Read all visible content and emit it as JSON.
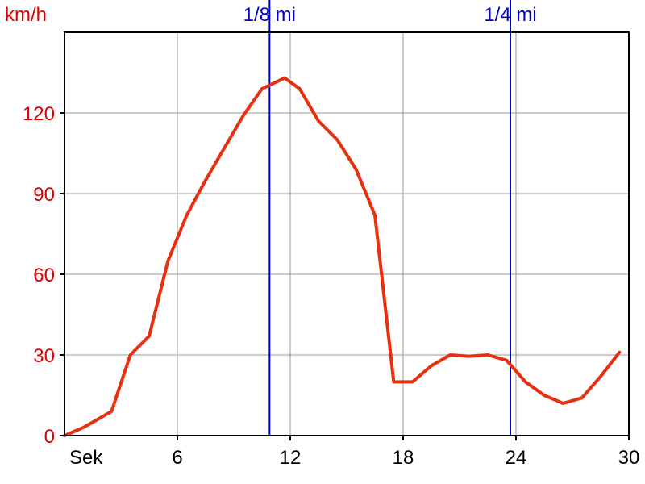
{
  "chart_data": {
    "type": "line",
    "ylabel": "km/h",
    "xlabel": "Sek",
    "xlim": [
      0,
      30
    ],
    "ylim": [
      0,
      150
    ],
    "xticks": [
      6,
      12,
      18,
      24,
      30
    ],
    "yticks": [
      0,
      30,
      60,
      90,
      120
    ],
    "grid": true,
    "line_color": "#e83010",
    "axis_text_color": "#e00000",
    "marker_color": "#0000cc",
    "markers": [
      {
        "label": "1/8 mi",
        "x": 10.9
      },
      {
        "label": "1/4 mi",
        "x": 23.7
      }
    ],
    "series": [
      {
        "x": [
          0,
          1,
          2.5,
          3.5,
          4.5,
          5.5,
          6.5,
          7.5,
          8.5,
          9.5,
          10.5,
          11.7,
          12.5,
          13.5,
          14.5,
          15.5,
          16.5,
          17.5,
          18.5,
          19.5,
          20.5,
          21.5,
          22.5,
          23.5,
          24.5,
          25.5,
          26.5,
          27.5,
          28.5,
          29.5
        ],
        "y": [
          0,
          3,
          9,
          30,
          37,
          65,
          82,
          95,
          107,
          119,
          129,
          133,
          129,
          117,
          110,
          99,
          82,
          20,
          20,
          26,
          30,
          29.5,
          30,
          28,
          20,
          15,
          12,
          14,
          22,
          31
        ]
      }
    ]
  }
}
